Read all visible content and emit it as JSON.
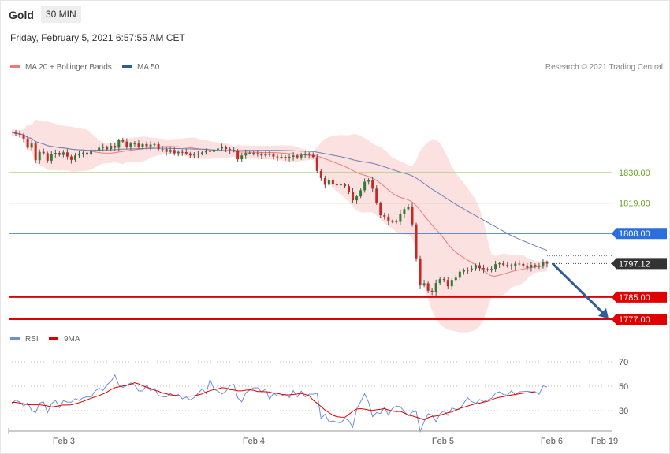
{
  "header": {
    "instrument": "Gold",
    "interval": "30 MIN",
    "datetime": "Friday, February 5, 2021 6:57:55 AM CET",
    "copyright": "Research © 2021 Trading Central"
  },
  "legend": {
    "ma20": "MA 20 + Bollinger Bands",
    "ma50": "MA 50",
    "rsi": "RSI",
    "ma9": "9MA"
  },
  "colors": {
    "ma20": "#f07a7a",
    "bollinger_fill": "#fbd4d4",
    "ma50": "#6a7fb5",
    "up_candle": "#2e7d32",
    "down_candle": "#c62828",
    "green_level": "#8bc34a",
    "blue_level": "#2a6fdb",
    "red_level": "#e00000",
    "current_price": "#333333",
    "rsi": "#6c8fd8",
    "rsi_ma": "#e00000",
    "arrow": "#2f5c9a"
  },
  "chart_data": [
    {
      "type": "candlestick",
      "title": "Gold",
      "ylim": [
        1771,
        1845
      ],
      "x_ticks": [
        "Feb 3",
        "Feb 4",
        "Feb 5",
        "Feb 6",
        "Feb 19"
      ],
      "levels": [
        {
          "value": 1830.0,
          "label": "1830.00",
          "kind": "resistance-minor"
        },
        {
          "value": 1819.0,
          "label": "1819.00",
          "kind": "resistance-minor"
        },
        {
          "value": 1808.0,
          "label": "1808.00",
          "kind": "pivot"
        },
        {
          "value": 1797.12,
          "label": "1797.12",
          "kind": "last-price"
        },
        {
          "value": 1785.0,
          "label": "1785.00",
          "kind": "target"
        },
        {
          "value": 1777.0,
          "label": "1777.00",
          "kind": "target"
        }
      ],
      "forecast_arrow": {
        "from": 1797.12,
        "to": 1777.0,
        "direction": "down"
      },
      "close": [
        1844.5,
        1844.0,
        1843.7,
        1842.3,
        1839.0,
        1840.5,
        1834.5,
        1837.5,
        1837.0,
        1834.3,
        1836.8,
        1837.1,
        1836.4,
        1837.3,
        1835.8,
        1834.6,
        1836.2,
        1836.7,
        1837.2,
        1836.5,
        1838.0,
        1838.0,
        1839.0,
        1839.2,
        1838.5,
        1839.7,
        1839.0,
        1841.7,
        1841.2,
        1839.3,
        1840.5,
        1840.5,
        1839.2,
        1840.3,
        1839.5,
        1840.1,
        1840.3,
        1838.5,
        1838.5,
        1837.5,
        1838.2,
        1837.0,
        1837.5,
        1837.4,
        1836.9,
        1836.2,
        1836.5,
        1836.8,
        1837.3,
        1837.8,
        1837.5,
        1838.3,
        1838.7,
        1839.2,
        1838.5,
        1838.2,
        1837.9,
        1834.8,
        1836.2,
        1837.1,
        1837.1,
        1837.0,
        1836.9,
        1836.2,
        1836.7,
        1836.6,
        1835.8,
        1835.6,
        1835.7,
        1835.2,
        1835.7,
        1836.2,
        1835.5,
        1836.3,
        1836.8,
        1836.4,
        1835.6,
        1830.6,
        1828.0,
        1825.6,
        1827.2,
        1825.7,
        1825.4,
        1825.7,
        1825.1,
        1823.1,
        1820.0,
        1821.4,
        1823.6,
        1826.7,
        1827.4,
        1824.2,
        1819.0,
        1814.6,
        1814.1,
        1812.4,
        1812.3,
        1812.2,
        1815.1,
        1816.8,
        1817.7,
        1811.3,
        1799.0,
        1789.2,
        1790.0,
        1787.3,
        1786.8,
        1790.1,
        1791.5,
        1791.2,
        1788.9,
        1791.2,
        1792.0,
        1794.2,
        1794.8,
        1794.7,
        1795.3,
        1796.5,
        1795.5,
        1795.1,
        1794.8,
        1795.2,
        1796.9,
        1797.2,
        1796.6,
        1796.5,
        1796.1,
        1797.1,
        1797.0,
        1796.4,
        1795.6,
        1796.6,
        1796.0,
        1796.4,
        1797.6,
        1797.1
      ]
    },
    {
      "type": "line",
      "title": "RSI",
      "ylim": [
        10,
        80
      ],
      "y_ticks": [
        30,
        50,
        70
      ],
      "series": [
        {
          "name": "RSI",
          "values": [
            35.8,
            38.7,
            36.9,
            34.0,
            36.3,
            30.3,
            28.3,
            36.2,
            37.2,
            28.4,
            35.6,
            38.6,
            32.4,
            38.2,
            37.0,
            36.9,
            39.8,
            38.4,
            40.6,
            41.3,
            41.0,
            46.0,
            48.4,
            46.6,
            51.3,
            53.8,
            59.2,
            50.8,
            49.0,
            50.6,
            52.8,
            50.9,
            46.1,
            46.1,
            51.1,
            46.4,
            48.2,
            42.3,
            41.5,
            41.2,
            44.0,
            42.0,
            43.2,
            39.7,
            41.1,
            38.7,
            40.7,
            44.2,
            47.9,
            44.0,
            55.4,
            47.7,
            45.9,
            43.6,
            45.9,
            50.5,
            51.5,
            40.3,
            37.2,
            44.5,
            46.9,
            48.7,
            48.7,
            45.2,
            47.7,
            39.4,
            44.2,
            42.0,
            42.1,
            43.5,
            40.7,
            46.4,
            41.3,
            46.0,
            41.3,
            43.5,
            43.5,
            44.2,
            23.5,
            27.1,
            20.8,
            21.7,
            20.5,
            20.0,
            23.7,
            21.9,
            16.3,
            31.6,
            37.5,
            43.9,
            36.7,
            25.1,
            28.4,
            27.6,
            32.8,
            26.4,
            31.8,
            33.8,
            33.2,
            29.2,
            25.8,
            28.8,
            29.6,
            13.0,
            21.1,
            27.4,
            26.3,
            21.0,
            27.4,
            29.8,
            26.2,
            32.2,
            31.0,
            31.2,
            36.2,
            40.6,
            37.4,
            35.8,
            39.1,
            37.4,
            38.7,
            40.1,
            44.3,
            45.4,
            43.2,
            42.6,
            46.3,
            43.0,
            45.4,
            45.7,
            45.9,
            45.4,
            45.5,
            43.5,
            50.3,
            49.3
          ]
        },
        {
          "name": "9MA",
          "values": [
            36.8,
            36.8,
            36.2,
            35.6,
            34.9,
            34.8,
            34.8,
            34.8,
            34.3,
            33.9,
            33.0,
            33.5,
            34.1,
            34.6,
            34.6,
            34.8,
            35.7,
            36.5,
            37.6,
            38.9,
            40.1,
            41.3,
            42.3,
            43.7,
            45.2,
            47.2,
            48.8,
            49.4,
            50.2,
            50.8,
            51.7,
            52.8,
            51.9,
            50.4,
            49.1,
            48.1,
            46.8,
            45.9,
            44.4,
            43.8,
            42.9,
            42.6,
            42.2,
            41.9,
            41.9,
            41.9,
            42.1,
            42.9,
            43.7,
            45.2,
            46.3,
            47.3,
            47.8,
            48.8,
            48.6,
            47.3,
            46.9,
            46.2,
            46.2,
            46.8,
            47.0,
            46.7,
            45.7,
            45.6,
            45.5,
            45.2,
            44.3,
            44.1,
            43.4,
            43.0,
            42.9,
            43.2,
            43.6,
            44.1,
            43.2,
            42.3,
            38.6,
            36.0,
            33.4,
            30.5,
            28.4,
            26.2,
            25.1,
            24.7,
            24.6,
            26.9,
            29.4,
            31.3,
            31.6,
            31.2,
            30.6,
            30.1,
            30.7,
            31.1,
            31.7,
            30.6,
            29.7,
            29.2,
            29.4,
            28.0,
            26.3,
            25.7,
            24.8,
            23.6,
            22.6,
            24.2,
            25.3,
            25.6,
            26.2,
            27.3,
            28.4,
            28.9,
            30.3,
            31.8,
            32.8,
            33.8,
            34.7,
            35.6,
            36.1,
            36.9,
            37.6,
            38.9,
            40.1,
            40.9,
            41.5,
            42.2,
            42.8,
            43.2,
            43.8,
            44.3,
            44.5,
            44.9,
            45.5
          ]
        }
      ]
    }
  ]
}
